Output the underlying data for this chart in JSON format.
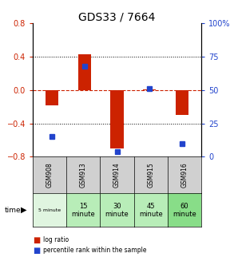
{
  "title": "GDS33 / 7664",
  "samples": [
    "GSM908",
    "GSM913",
    "GSM914",
    "GSM915",
    "GSM916"
  ],
  "time_labels": [
    "5 minute",
    "15\nminute",
    "30\nminute",
    "45\nminute",
    "60\nminute"
  ],
  "log_ratios": [
    -0.18,
    0.43,
    -0.7,
    0.01,
    -0.3
  ],
  "percentile_ranks": [
    15,
    68,
    4,
    51,
    10
  ],
  "ylim_left": [
    -0.8,
    0.8
  ],
  "ylim_right": [
    0,
    100
  ],
  "bar_color": "#cc2200",
  "dot_color": "#2244cc",
  "yticks_left": [
    -0.8,
    -0.4,
    0,
    0.4,
    0.8
  ],
  "yticks_right": [
    0,
    25,
    50,
    75,
    100
  ],
  "table_row1_colors": [
    "#d0d0d0",
    "#d0d0d0",
    "#d0d0d0",
    "#d0d0d0",
    "#d0d0d0"
  ],
  "table_row2_colors": [
    "#e0f5e0",
    "#b8edb8",
    "#b8edb8",
    "#b8edb8",
    "#88dd88"
  ],
  "legend_log_ratio": "log ratio",
  "legend_percentile": "percentile rank within the sample"
}
